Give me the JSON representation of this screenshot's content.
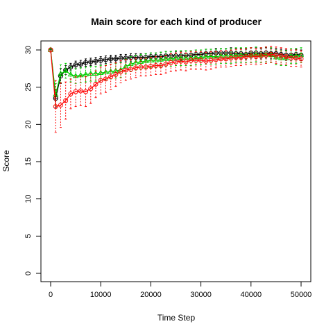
{
  "chart_data": {
    "type": "line",
    "title": "Main score for each kind of producer",
    "xlabel": "Time Step",
    "ylabel": "Score",
    "xlim": [
      0,
      50000
    ],
    "ylim": [
      0,
      30
    ],
    "xticks": [
      0,
      10000,
      20000,
      30000,
      40000,
      50000
    ],
    "yticks": [
      0,
      5,
      10,
      15,
      20,
      25,
      30
    ],
    "grid": false,
    "legend": "none",
    "x": [
      0,
      1000,
      2000,
      3000,
      4000,
      5000,
      6000,
      7000,
      8000,
      9000,
      10000,
      11000,
      12000,
      13000,
      14000,
      15000,
      16000,
      17000,
      18000,
      19000,
      20000,
      21000,
      22000,
      23000,
      24000,
      25000,
      26000,
      27000,
      28000,
      29000,
      30000,
      31000,
      32000,
      33000,
      34000,
      35000,
      36000,
      37000,
      38000,
      39000,
      40000,
      41000,
      42000,
      43000,
      44000,
      45000,
      46000,
      47000,
      48000,
      49000,
      50000
    ],
    "series": [
      {
        "color": "#000000",
        "marker": "circle-plus",
        "values": [
          30.0,
          23.5,
          26.5,
          27.3,
          27.7,
          28.0,
          28.1,
          28.3,
          28.4,
          28.5,
          28.6,
          28.7,
          28.8,
          28.8,
          28.9,
          28.9,
          29.0,
          29.0,
          29.0,
          29.0,
          29.1,
          29.1,
          29.1,
          29.2,
          29.2,
          29.2,
          29.2,
          29.3,
          29.3,
          29.4,
          29.4,
          29.5,
          29.5,
          29.6,
          29.6,
          29.6,
          29.6,
          29.5,
          29.5,
          29.4,
          29.6,
          29.6,
          29.5,
          29.6,
          29.5,
          29.5,
          29.4,
          29.3,
          29.3,
          29.4,
          29.3
        ],
        "errors": [
          0.1,
          1.2,
          1.0,
          0.6,
          0.5,
          0.5,
          0.5,
          0.5,
          0.5,
          0.5,
          0.5,
          0.5,
          0.5,
          0.5,
          0.5,
          0.5,
          0.5,
          0.5,
          0.5,
          0.5,
          0.5,
          0.5,
          0.6,
          0.6,
          0.6,
          0.6,
          0.6,
          0.6,
          0.6,
          0.6,
          0.6,
          0.6,
          0.6,
          0.6,
          0.6,
          0.6,
          0.7,
          0.7,
          0.7,
          0.7,
          0.7,
          0.7,
          0.7,
          0.7,
          0.7,
          0.7,
          0.7,
          0.7,
          0.7,
          0.7,
          0.7
        ]
      },
      {
        "color": "#00cc00",
        "marker": "triangle",
        "values": [
          30.0,
          24.0,
          26.8,
          27.2,
          26.7,
          26.5,
          26.6,
          26.7,
          26.8,
          26.8,
          26.9,
          27.0,
          27.1,
          27.2,
          27.3,
          27.8,
          28.1,
          28.3,
          28.4,
          28.5,
          28.6,
          28.6,
          28.7,
          28.8,
          28.8,
          28.9,
          28.9,
          28.9,
          28.9,
          29.0,
          29.0,
          29.1,
          29.1,
          29.1,
          29.2,
          29.2,
          29.2,
          29.3,
          29.3,
          29.3,
          29.3,
          29.4,
          29.3,
          29.4,
          29.3,
          29.0,
          28.9,
          28.9,
          29.2,
          29.2,
          29.3
        ],
        "errors": [
          0.1,
          1.5,
          1.2,
          1.0,
          1.0,
          1.0,
          1.0,
          1.0,
          1.0,
          1.0,
          1.0,
          1.0,
          1.0,
          1.0,
          1.0,
          1.0,
          1.0,
          1.0,
          1.0,
          1.0,
          1.0,
          1.0,
          1.0,
          1.0,
          1.0,
          1.0,
          1.0,
          1.0,
          1.0,
          1.0,
          1.0,
          1.0,
          1.0,
          1.0,
          1.0,
          1.0,
          1.0,
          1.0,
          1.0,
          1.0,
          1.0,
          1.0,
          1.0,
          1.0,
          1.0,
          1.0,
          1.0,
          1.0,
          1.0,
          1.0,
          1.0
        ]
      },
      {
        "color": "#ff0000",
        "marker": "circle",
        "values": [
          30.0,
          22.4,
          22.6,
          23.2,
          24.1,
          24.4,
          24.5,
          24.4,
          24.8,
          25.4,
          25.9,
          26.1,
          26.4,
          26.7,
          27.1,
          27.3,
          27.4,
          27.6,
          27.7,
          27.7,
          27.8,
          27.9,
          27.9,
          28.1,
          28.3,
          28.4,
          28.5,
          28.4,
          28.6,
          28.6,
          28.6,
          28.5,
          28.6,
          28.7,
          28.8,
          28.8,
          28.9,
          29.0,
          29.0,
          29.1,
          29.2,
          29.1,
          29.2,
          29.3,
          29.4,
          29.3,
          29.2,
          29.1,
          28.9,
          28.9,
          28.8
        ],
        "errors": [
          0.1,
          3.5,
          3.0,
          2.5,
          2.0,
          2.0,
          2.0,
          2.0,
          2.0,
          1.8,
          1.8,
          1.8,
          1.7,
          1.6,
          1.5,
          1.4,
          1.3,
          1.3,
          1.2,
          1.2,
          1.2,
          1.2,
          1.2,
          1.2,
          1.2,
          1.2,
          1.2,
          1.2,
          1.2,
          1.2,
          1.2,
          1.2,
          1.2,
          1.1,
          1.1,
          1.1,
          1.1,
          1.1,
          1.1,
          1.1,
          1.1,
          1.1,
          1.1,
          1.1,
          1.1,
          1.1,
          1.1,
          1.1,
          1.1,
          1.1,
          1.1
        ]
      }
    ]
  }
}
